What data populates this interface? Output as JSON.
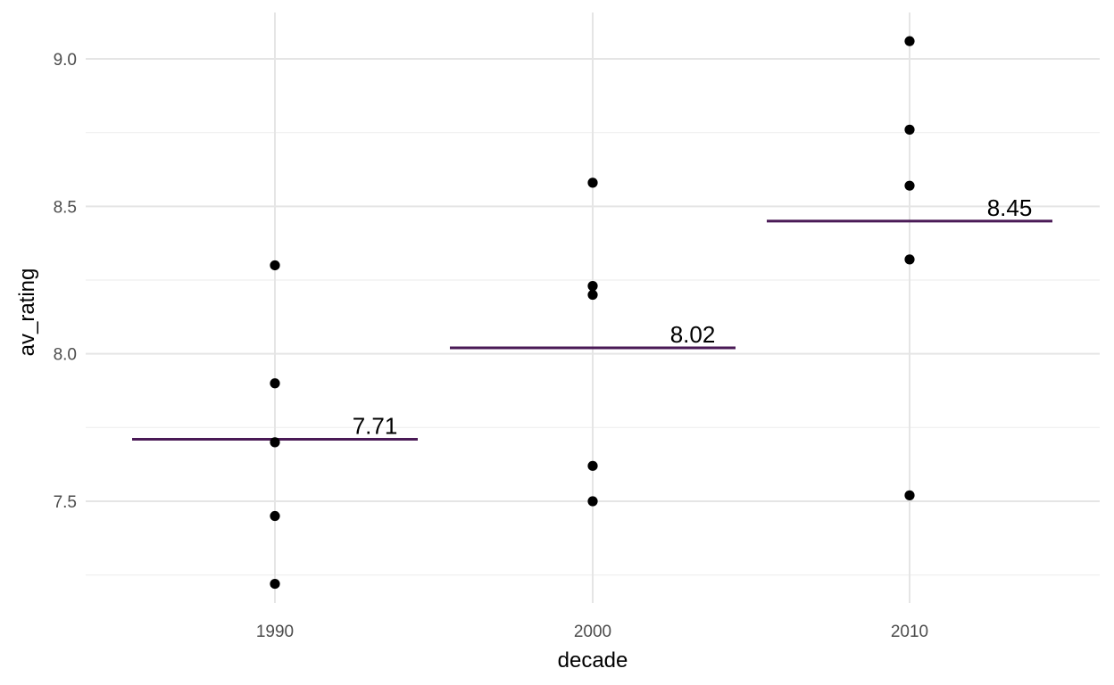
{
  "chart_data": {
    "type": "scatter",
    "title": "",
    "xlabel": "decade",
    "ylabel": "av_rating",
    "categories": [
      "1990",
      "2000",
      "2010"
    ],
    "ylim": [
      7.15,
      9.15
    ],
    "y_ticks": [
      "7.5",
      "8.0",
      "8.5",
      "9.0"
    ],
    "y_minor_ticks": [
      7.25,
      7.75,
      8.25,
      8.75
    ],
    "grid": true,
    "points": [
      {
        "x": "1990",
        "y": 8.3
      },
      {
        "x": "1990",
        "y": 7.9
      },
      {
        "x": "1990",
        "y": 7.7
      },
      {
        "x": "1990",
        "y": 7.45
      },
      {
        "x": "1990",
        "y": 7.22
      },
      {
        "x": "2000",
        "y": 8.58
      },
      {
        "x": "2000",
        "y": 8.23
      },
      {
        "x": "2000",
        "y": 8.2
      },
      {
        "x": "2000",
        "y": 7.62
      },
      {
        "x": "2000",
        "y": 7.5
      },
      {
        "x": "2010",
        "y": 9.06
      },
      {
        "x": "2010",
        "y": 8.76
      },
      {
        "x": "2010",
        "y": 8.57
      },
      {
        "x": "2010",
        "y": 8.32
      },
      {
        "x": "2010",
        "y": 7.52
      }
    ],
    "means": [
      {
        "x": "1990",
        "value": 7.71,
        "label": "7.71"
      },
      {
        "x": "2000",
        "value": 8.02,
        "label": "8.02"
      },
      {
        "x": "2010",
        "value": 8.45,
        "label": "8.45"
      }
    ],
    "colors": {
      "point": "#000000",
      "mean_line": "#4a1a56",
      "grid": "#e5e5e5"
    }
  }
}
